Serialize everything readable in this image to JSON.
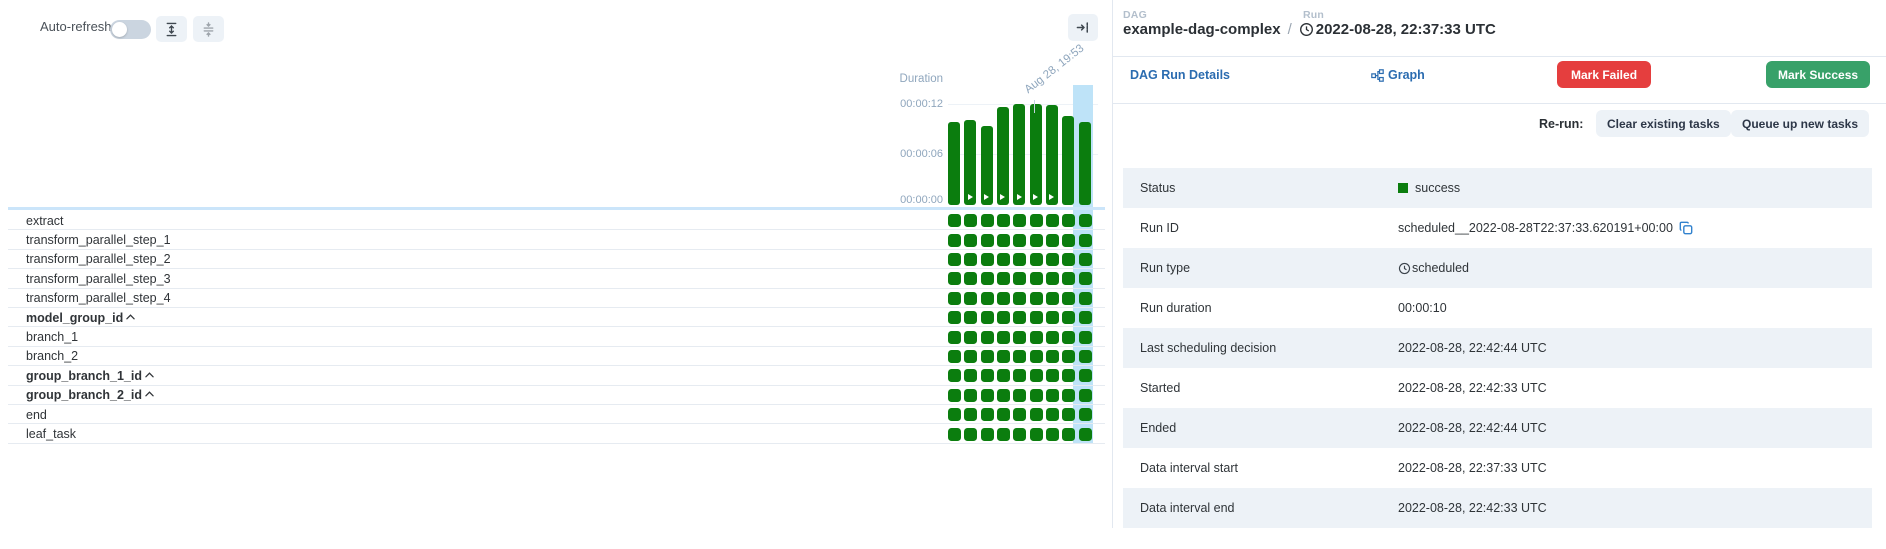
{
  "toolbar": {
    "auto_refresh_label": "Auto-refresh",
    "auto_refresh_on": false
  },
  "chart": {
    "duration_label": "Duration",
    "y_ticks": [
      "00:00:12",
      "00:00:06",
      "00:00:00"
    ],
    "date_label": "Aug 28, 19:53",
    "selected_run_index": 8,
    "runs": [
      {
        "duration_sec": 9.9,
        "manual_marker": false
      },
      {
        "duration_sec": 10.1,
        "manual_marker": true
      },
      {
        "duration_sec": 9.4,
        "manual_marker": true
      },
      {
        "duration_sec": 11.7,
        "manual_marker": true
      },
      {
        "duration_sec": 12.1,
        "manual_marker": true
      },
      {
        "duration_sec": 12.1,
        "manual_marker": true
      },
      {
        "duration_sec": 11.9,
        "manual_marker": true
      },
      {
        "duration_sec": 10.6,
        "manual_marker": false
      },
      {
        "duration_sec": 9.9,
        "manual_marker": false
      }
    ]
  },
  "chart_data": {
    "type": "bar",
    "title": "Duration",
    "ylabel": "Duration",
    "xlabel": "",
    "x_annotation": "Aug 28, 19:53",
    "values_seconds": [
      9.9,
      10.1,
      9.4,
      11.7,
      12.1,
      12.1,
      11.9,
      10.6,
      9.9
    ],
    "y_tick_labels": [
      "00:00:00",
      "00:00:06",
      "00:00:12"
    ],
    "ylim_seconds": [
      0,
      13
    ],
    "highlighted_bar_index": 8,
    "bar_color": "#0b7d0e",
    "highlight_color": "#bee3f8"
  },
  "tasks": [
    {
      "name": "extract",
      "group": false
    },
    {
      "name": "transform_parallel_step_1",
      "group": false
    },
    {
      "name": "transform_parallel_step_2",
      "group": false
    },
    {
      "name": "transform_parallel_step_3",
      "group": false
    },
    {
      "name": "transform_parallel_step_4",
      "group": false
    },
    {
      "name": "model_group_id",
      "group": true
    },
    {
      "name": "branch_1",
      "group": false
    },
    {
      "name": "branch_2",
      "group": false
    },
    {
      "name": "group_branch_1_id",
      "group": true
    },
    {
      "name": "group_branch_2_id",
      "group": true
    },
    {
      "name": "end",
      "group": false
    },
    {
      "name": "leaf_task",
      "group": false
    }
  ],
  "grid": {
    "run_count": 9,
    "instance_status": "success"
  },
  "details_panel": {
    "breadcrumb": {
      "dag_label": "DAG",
      "dag_name": "example-dag-complex",
      "separator": "/",
      "run_label": "Run",
      "run_timestamp": "2022-08-28, 22:37:33 UTC"
    },
    "tabs": {
      "dag_run_details": "DAG Run Details",
      "graph": "Graph"
    },
    "actions": {
      "mark_failed": "Mark Failed",
      "mark_success": "Mark Success"
    },
    "rerun": {
      "label": "Re-run:",
      "clear_button": "Clear existing tasks",
      "queue_button": "Queue up new tasks"
    },
    "table": [
      {
        "label": "Status",
        "value": "success",
        "icon": "status-square"
      },
      {
        "label": "Run ID",
        "value": "scheduled__2022-08-28T22:37:33.620191+00:00",
        "icon_after": "copy"
      },
      {
        "label": "Run type",
        "value": "scheduled",
        "icon": "clock"
      },
      {
        "label": "Run duration",
        "value": "00:00:10"
      },
      {
        "label": "Last scheduling decision",
        "value": "2022-08-28, 22:42:44 UTC"
      },
      {
        "label": "Started",
        "value": "2022-08-28, 22:42:33 UTC"
      },
      {
        "label": "Ended",
        "value": "2022-08-28, 22:42:44 UTC"
      },
      {
        "label": "Data interval start",
        "value": "2022-08-28, 22:37:33 UTC"
      },
      {
        "label": "Data interval end",
        "value": "2022-08-28, 22:42:33 UTC"
      }
    ]
  },
  "colors": {
    "success_green": "#0b7d0e",
    "selected_blue": "#bee3f8",
    "link_blue": "#2b6cb0",
    "failed_red": "#e53e3e",
    "success_button_green": "#38a169",
    "stripe": "#edf2f7",
    "border": "#e2e8f0",
    "axis_text": "#8fa6bd"
  }
}
